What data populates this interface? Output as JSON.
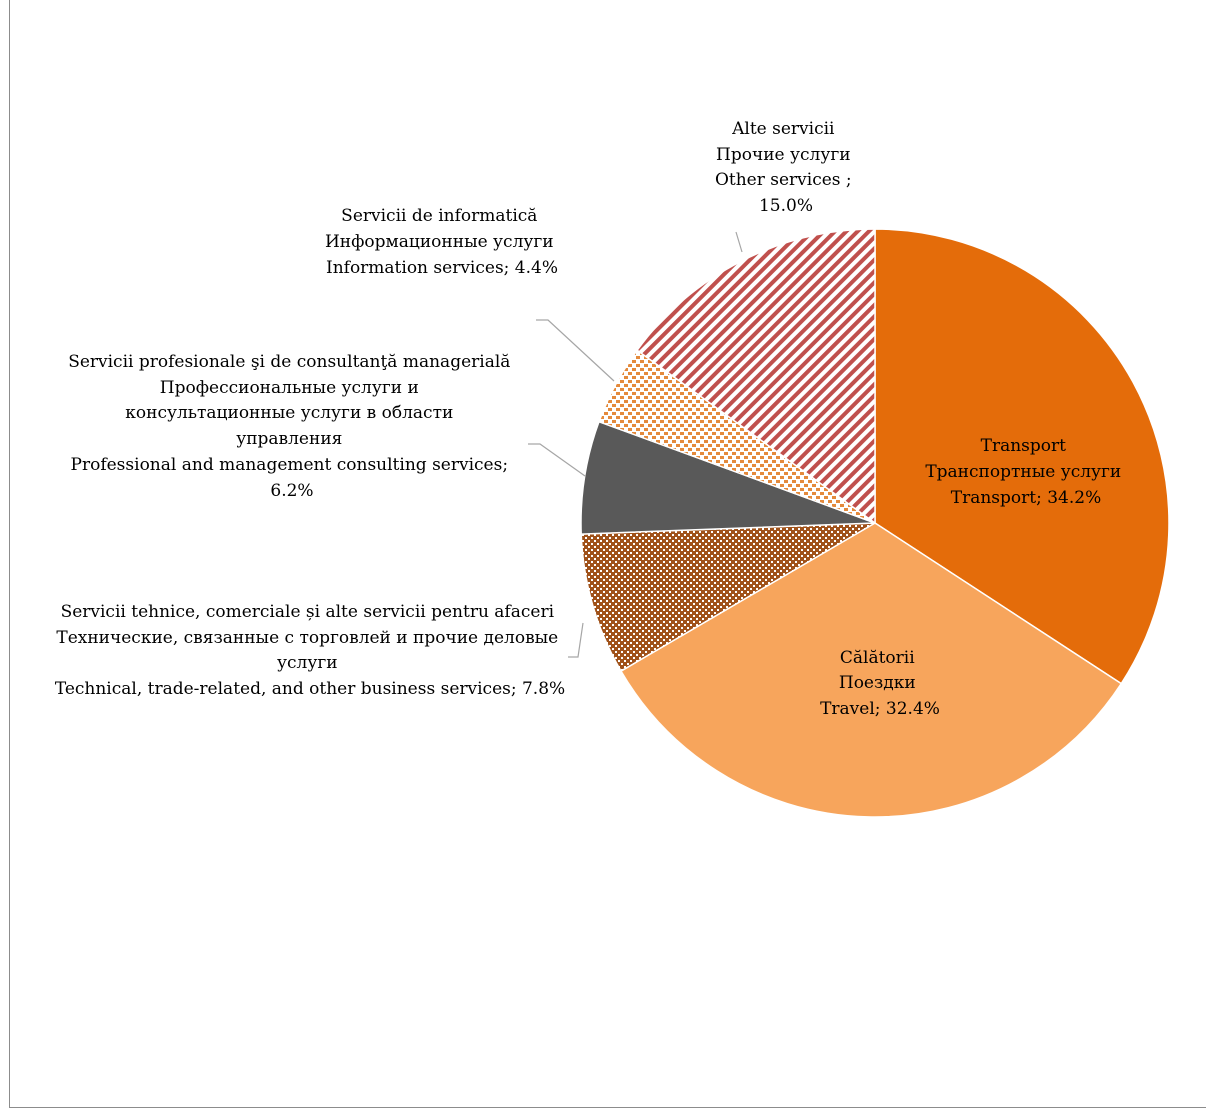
{
  "chart_data": {
    "type": "pie",
    "title": "",
    "slices": [
      {
        "lines": [
          "Transport",
          "Транспортные услуги",
          "Transport; 34.2%"
        ],
        "value": 34.2,
        "color": "#e46c0a",
        "pattern": "solid"
      },
      {
        "lines": [
          "Călătorii",
          "Поездки",
          "Travel; 32.4%"
        ],
        "value": 32.4,
        "color": "#f7a55c",
        "pattern": "solid"
      },
      {
        "lines": [
          "Servicii tehnice, comerciale și alte servicii pentru afaceri",
          "Технические, связанные с торговлей и прочие деловые",
          "услуги",
          "Technical, trade-related, and other business services; 7.8%"
        ],
        "value": 7.8,
        "color": "#a0521a",
        "pattern": "checker"
      },
      {
        "lines": [
          "Servicii profesionale şi de consultanţă managerială",
          "Профессиональные услуги и",
          "консультационные услуги в области",
          "управления",
          "Professional and management consulting services;",
          "6.2%"
        ],
        "value": 6.2,
        "color": "#595959",
        "pattern": "solid"
      },
      {
        "lines": [
          "Servicii de informatică",
          "Информационные услуги",
          "Information services; 4.4%"
        ],
        "value": 4.4,
        "color": "#e48a3c",
        "pattern": "dots"
      },
      {
        "lines": [
          "Alte servicii",
          "Прочие услуги",
          "Other services ;",
          "15.0%"
        ],
        "value": 15.0,
        "color": "#c0504d",
        "pattern": "diagonal"
      }
    ]
  }
}
